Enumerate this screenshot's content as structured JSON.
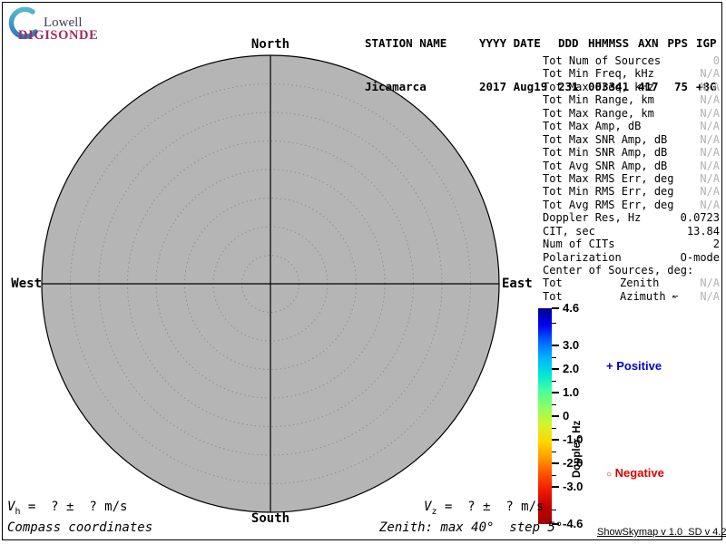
{
  "logo": {
    "brand_top": "Lowell",
    "brand_bottom": "DIGISONDE",
    "brand_top_color": "#3c3c55",
    "brand_bottom_color": "#a32a60",
    "arc_color_top": "#56b6d2",
    "arc_color_bottom": "#2e7cb4"
  },
  "header": {
    "columns": [
      {
        "label": "STATION NAME",
        "value": "Jicamarca"
      },
      {
        "label": "YYYY DATE",
        "value": "2017 Aug19"
      },
      {
        "label": "DDD",
        "value": "231"
      },
      {
        "label": "HHMMSS",
        "value": "003341"
      },
      {
        "label": "AXN",
        "value": "417"
      },
      {
        "label": "PPS",
        "value": "75"
      },
      {
        "label": "IGP",
        "value": "+8G"
      }
    ]
  },
  "stats": {
    "rows": [
      {
        "label": "Tot Num of Sources",
        "value": "0"
      },
      {
        "label": "Tot Min Freq, kHz",
        "value": "N/A"
      },
      {
        "label": "Tot Max Freq, kHz",
        "value": "N/A"
      },
      {
        "label": "Tot Min Range, km",
        "value": "N/A"
      },
      {
        "label": "Tot Max Range, km",
        "value": "N/A"
      },
      {
        "label": "Tot Max Amp, dB",
        "value": "N/A"
      },
      {
        "label": "Tot Max SNR Amp, dB",
        "value": "N/A"
      },
      {
        "label": "Tot Min SNR Amp, dB",
        "value": "N/A"
      },
      {
        "label": "Tot Avg SNR Amp, dB",
        "value": "N/A"
      },
      {
        "label": "Tot Max RMS Err, deg",
        "value": "N/A"
      },
      {
        "label": "Tot Min RMS Err, deg",
        "value": "N/A"
      },
      {
        "label": "Tot Avg RMS Err, deg",
        "value": "N/A"
      },
      {
        "label": "Doppler Res, Hz",
        "value": "0.0723"
      },
      {
        "label": "CIT, sec",
        "value": "13.84"
      },
      {
        "label": "Num of CITs",
        "value": "2"
      },
      {
        "label": "Polarization",
        "value": "O-mode"
      },
      {
        "label": "Center of Sources, deg:",
        "value": ""
      },
      {
        "label": "Tot",
        "mid": "Zenith",
        "value": "N/A"
      },
      {
        "label": "Tot",
        "mid": "Azimuth ↜",
        "value": "N/A"
      }
    ]
  },
  "compass": {
    "north": "North",
    "south": "South",
    "west": "West",
    "east": "East"
  },
  "legend": {
    "positive_marker": "+",
    "positive_label": "Positive",
    "positive_color": "#0000d0",
    "negative_marker": "○",
    "negative_label": "Negative",
    "negative_color": "#dd0000"
  },
  "footer": {
    "v_symbol": "V",
    "vh_sub": "h",
    "vz_sub": "z",
    "v_rest": " =  ? ±  ? m/s",
    "coords_label": "Compass coordinates",
    "zenith_label": "Zenith: max 40°  step 5°",
    "version": "ShowSkymap v 1.0  SD v 4.2"
  },
  "chart_data": {
    "type": "scatter",
    "projection": "polar-skymap",
    "title": "",
    "compass_labels": [
      "North",
      "East",
      "South",
      "West"
    ],
    "zenith_max_deg": 40,
    "zenith_step_deg": 5,
    "points": [],
    "num_sources": 0,
    "plot_fill": "#b5b5b5",
    "grid": "dotted-concentric",
    "colorbar": {
      "label": "Doppler, Hz",
      "min": -4.6,
      "max": 4.6,
      "major_ticks": [
        4.6,
        3.0,
        2.0,
        1.0,
        0,
        -1.0,
        -2.0,
        -3.0,
        -4.6
      ],
      "major_labels": [
        "4.6",
        "3.0",
        "2.0",
        "1.0",
        "0",
        "-1.0",
        "-2.0",
        "-3.0",
        "-4.6"
      ],
      "minor_ticks": [
        4.0,
        2.5,
        1.5,
        0.5,
        -0.5,
        -1.5,
        -2.5,
        -4.0
      ],
      "gradient": [
        "#000090",
        "#0000f0",
        "#0064ff",
        "#00b4ff",
        "#00e8d8",
        "#48ff9c",
        "#90ff60",
        "#d4f32c",
        "#ffd800",
        "#ff9c00",
        "#ff5000",
        "#f01800",
        "#c00000",
        "#a00000"
      ]
    }
  }
}
